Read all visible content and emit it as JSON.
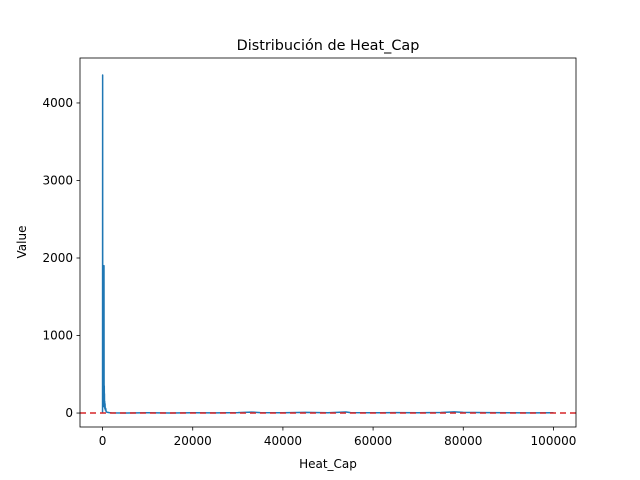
{
  "chart_data": {
    "type": "line",
    "title": "Distribución de Heat_Cap",
    "xlabel": "Heat_Cap",
    "ylabel": "Value",
    "xlim": [
      -5000,
      105000
    ],
    "ylim": [
      -180,
      4580
    ],
    "xticks": [
      0,
      20000,
      40000,
      60000,
      80000,
      100000
    ],
    "xtick_labels": [
      "0",
      "20000",
      "40000",
      "60000",
      "80000",
      "100000"
    ],
    "yticks": [
      0,
      1000,
      2000,
      3000,
      4000
    ],
    "ytick_labels": [
      "0",
      "1000",
      "2000",
      "3000",
      "4000"
    ],
    "grid": false,
    "series": [
      {
        "color": "#1f77b4",
        "x": [
          0,
          20,
          40,
          60,
          80,
          100,
          120,
          140,
          160,
          180,
          200,
          220,
          240,
          260,
          280,
          300,
          320,
          340,
          360,
          380,
          400,
          420,
          440,
          460,
          480,
          500,
          550,
          600,
          700,
          800,
          1000,
          1500,
          2000,
          5000,
          10000,
          15000,
          20000,
          25000,
          30000,
          33000,
          35000,
          40000,
          45000,
          50000,
          54000,
          55000,
          60000,
          65000,
          70000,
          75000,
          78000,
          80000,
          85000,
          90000,
          95000,
          100000
        ],
        "values": [
          0,
          4360,
          100,
          700,
          950,
          1160,
          200,
          80,
          500,
          300,
          1900,
          900,
          250,
          120,
          400,
          150,
          1900,
          300,
          200,
          350,
          150,
          250,
          100,
          80,
          150,
          60,
          120,
          40,
          60,
          20,
          10,
          5,
          2,
          0,
          3,
          1,
          4,
          2,
          5,
          12,
          6,
          3,
          8,
          4,
          14,
          5,
          3,
          6,
          4,
          7,
          15,
          9,
          5,
          4,
          2,
          3
        ]
      }
    ],
    "reference_line": {
      "y": 0,
      "color": "#d62728",
      "style": "dashed"
    }
  }
}
